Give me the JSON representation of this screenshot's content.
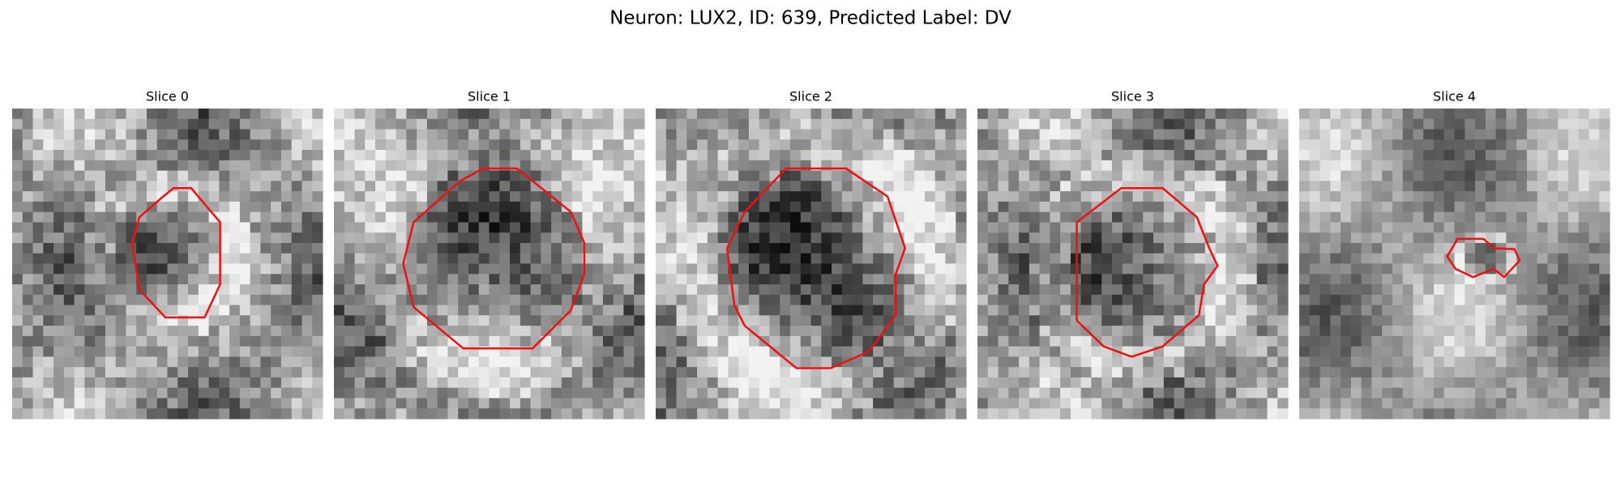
{
  "figure": {
    "title": "Neuron: LUX2, ID: 639, Predicted Label: DV",
    "panels": [
      {
        "title": "Slice 0"
      },
      {
        "title": "Slice 1"
      },
      {
        "title": "Slice 2"
      },
      {
        "title": "Slice 3"
      },
      {
        "title": "Slice 4"
      }
    ]
  }
}
